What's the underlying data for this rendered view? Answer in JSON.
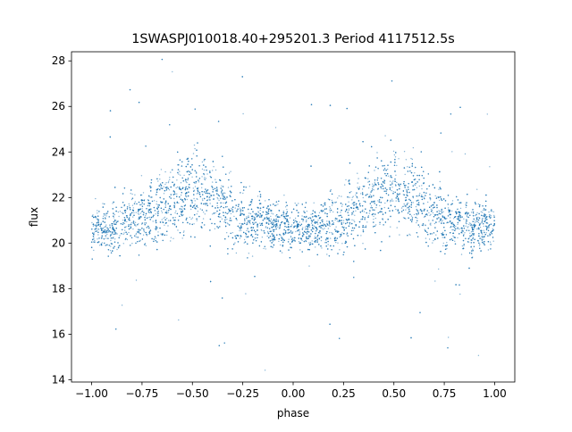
{
  "chart_data": {
    "type": "scatter",
    "title": "1SWASPJ010018.40+295201.3 Period 4117512.5s",
    "xlabel": "phase",
    "ylabel": "flux",
    "xlim": [
      -1.1,
      1.1
    ],
    "ylim": [
      13.9,
      28.4
    ],
    "xticks": [
      -1.0,
      -0.75,
      -0.5,
      -0.25,
      0.0,
      0.25,
      0.5,
      0.75,
      1.0
    ],
    "xtick_labels": [
      "−1.00",
      "−0.75",
      "−0.50",
      "−0.25",
      "0.00",
      "0.25",
      "0.50",
      "0.75",
      "1.00"
    ],
    "yticks": [
      14,
      16,
      18,
      20,
      22,
      24,
      26,
      28
    ],
    "ytick_labels": [
      "14",
      "16",
      "18",
      "20",
      "22",
      "24",
      "26",
      "28"
    ],
    "grid": false,
    "marker_color": "#1f77b4",
    "phase_profile": {
      "phase": [
        -1.0,
        -0.9,
        -0.8,
        -0.75,
        -0.7,
        -0.6,
        -0.5,
        -0.4,
        -0.3,
        -0.25,
        -0.2,
        -0.1,
        0.0,
        0.05,
        0.1,
        0.2,
        0.25,
        0.3,
        0.4,
        0.5,
        0.6,
        0.7,
        0.75,
        0.8,
        0.9,
        1.0
      ],
      "median_flux": [
        20.6,
        20.5,
        21.0,
        21.0,
        21.3,
        21.9,
        22.4,
        22.0,
        21.3,
        21.0,
        21.0,
        20.8,
        20.6,
        20.6,
        20.7,
        21.0,
        21.0,
        21.4,
        21.9,
        22.4,
        22.0,
        21.3,
        21.0,
        21.0,
        20.8,
        20.6
      ],
      "spread": [
        0.9,
        1.0,
        1.0,
        1.2,
        1.3,
        1.5,
        1.5,
        1.4,
        1.3,
        1.2,
        1.1,
        0.9,
        0.8,
        0.8,
        0.9,
        1.1,
        1.2,
        1.4,
        1.5,
        1.5,
        1.4,
        1.3,
        1.2,
        1.0,
        1.0,
        0.9
      ]
    }
  }
}
